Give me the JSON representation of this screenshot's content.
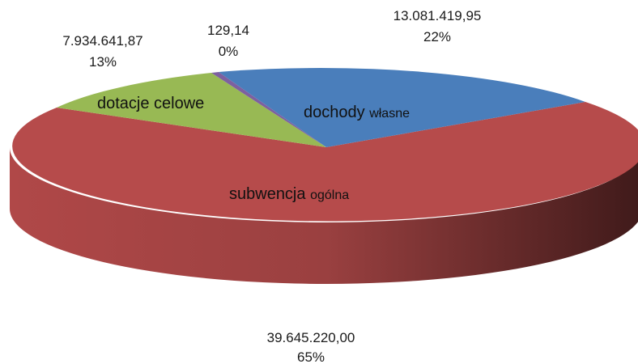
{
  "chart_data": {
    "type": "pie",
    "style": "3d",
    "slices": [
      {
        "label": "dochody własne",
        "label_main": "dochody",
        "label_small": "własne",
        "value": 13081419.95,
        "value_text": "13.081.419,95",
        "percent_text": "22%",
        "color": "#4a7ebb"
      },
      {
        "label": "subwencja ogólna",
        "label_main": "subwencja",
        "label_small": "ogólna",
        "value": 39645220.0,
        "value_text": "39.645.220,00",
        "percent_text": "65%",
        "color": "#b64b4b"
      },
      {
        "label": "dotacje celowe",
        "label_main": "dotacje celowe",
        "label_small": "",
        "value": 7934641.87,
        "value_text": "7.934.641,87",
        "percent_text": "13%",
        "color": "#98b954"
      },
      {
        "label": "",
        "label_main": "",
        "label_small": "",
        "value": 129.14,
        "value_text": "129,14",
        "percent_text": "0%",
        "color": "#7d60a0"
      }
    ],
    "side_colors": {
      "red_light": "#b04848",
      "red_dark": "#3f1a1a"
    }
  }
}
